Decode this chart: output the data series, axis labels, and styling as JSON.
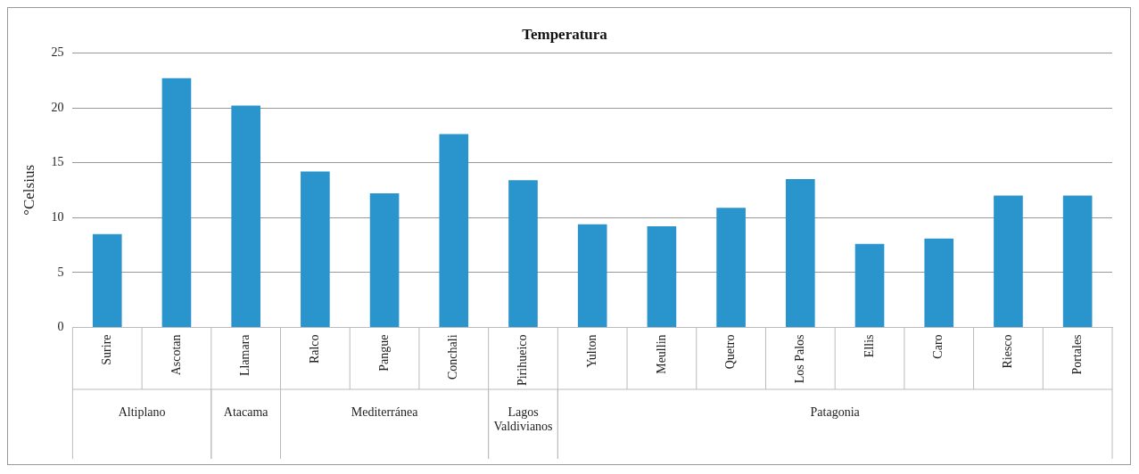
{
  "chart_data": {
    "type": "bar",
    "title": "Temperatura",
    "ylabel": "°Celsius",
    "categories": [
      "Surire",
      "Ascotan",
      "Llamara",
      "Ralco",
      "Pangue",
      "Conchali",
      "Pirihueico",
      "Yulton",
      "Meullin",
      "Quetro",
      "Los Palos",
      "Ellis",
      "Caro",
      "Riesco",
      "Portales"
    ],
    "values": [
      8.5,
      22.7,
      20.2,
      14.2,
      12.2,
      17.6,
      13.4,
      9.4,
      9.2,
      10.9,
      13.5,
      7.6,
      8.1,
      12.0,
      12.0
    ],
    "color": "#2a94cc",
    "ylim": [
      0,
      25
    ],
    "yticks": [
      0,
      5,
      10,
      15,
      20,
      25
    ],
    "grid": "y",
    "legend": false,
    "annotations": [
      "Altiplano",
      "Atacama",
      "Mediterránea",
      "Lagos Valdivianos",
      "Patagonia"
    ]
  }
}
